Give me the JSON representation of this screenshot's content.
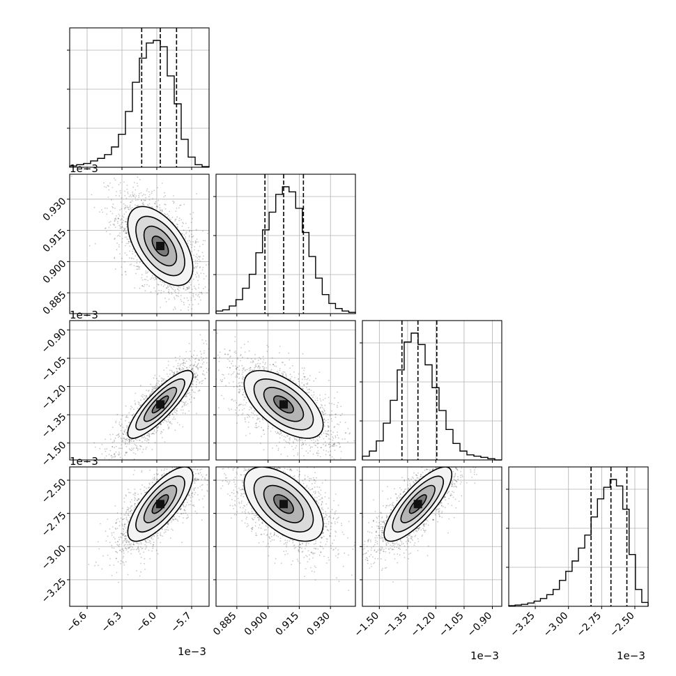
{
  "chart_data": {
    "type": "corner",
    "parameters": [
      {
        "range": [
          -0.00675,
          -0.00555
        ],
        "ticks": [
          "−6.6",
          "−6.3",
          "−6.0",
          "−5.7"
        ],
        "tick_values": [
          -0.0066,
          -0.0063,
          -0.006,
          -0.0057
        ],
        "offset_label": "1e−3",
        "quantiles": [
          -0.00613,
          -0.00597,
          -0.00583
        ]
      },
      {
        "range": [
          0.000875,
          0.000942
        ],
        "ticks": [
          "0.885",
          "0.900",
          "0.915",
          "0.930"
        ],
        "tick_values": [
          0.000885,
          0.0009,
          0.000915,
          0.00093
        ],
        "offset_label": "1e−3",
        "quantiles": [
          0.0008985,
          0.0009075,
          0.000917
        ]
      },
      {
        "range": [
          -0.00159,
          -0.00085
        ],
        "ticks": [
          "−1.50",
          "−1.35",
          "−1.20",
          "−1.05",
          "−0.90"
        ],
        "tick_values": [
          -0.0015,
          -0.00135,
          -0.0012,
          -0.00105,
          -0.0009
        ],
        "offset_label": "1e−3",
        "quantiles": [
          -0.00138,
          -0.001295,
          -0.001195
        ]
      },
      {
        "range": [
          -0.00345,
          -0.0024
        ],
        "ticks": [
          "−3.25",
          "−3.00",
          "−2.75",
          "−2.50"
        ],
        "tick_values": [
          -0.00325,
          -0.003,
          -0.00275,
          -0.0025
        ],
        "offset_label": "1e−3",
        "quantiles": [
          -0.00283,
          -0.00268,
          -0.00256
        ]
      }
    ],
    "histograms": [
      [
        0.01,
        0.02,
        0.03,
        0.05,
        0.07,
        0.1,
        0.16,
        0.26,
        0.44,
        0.67,
        0.86,
        0.98,
        1.0,
        0.95,
        0.72,
        0.5,
        0.22,
        0.08,
        0.02,
        0.005
      ],
      [
        0.02,
        0.03,
        0.06,
        0.11,
        0.2,
        0.31,
        0.48,
        0.66,
        0.8,
        0.94,
        1.0,
        0.96,
        0.83,
        0.64,
        0.45,
        0.28,
        0.15,
        0.08,
        0.04,
        0.02,
        0.01
      ],
      [
        0.03,
        0.07,
        0.15,
        0.29,
        0.47,
        0.71,
        0.93,
        1.0,
        0.91,
        0.75,
        0.57,
        0.39,
        0.24,
        0.13,
        0.07,
        0.04,
        0.03,
        0.02,
        0.01,
        0.0
      ],
      [
        0.005,
        0.01,
        0.015,
        0.025,
        0.04,
        0.06,
        0.09,
        0.13,
        0.2,
        0.27,
        0.35,
        0.45,
        0.55,
        0.69,
        0.83,
        0.92,
        0.98,
        0.93,
        0.75,
        0.4,
        0.13,
        0.03
      ]
    ],
    "pairs": [
      {
        "x": 0,
        "y": 1,
        "mean": [
          -0.00597,
          0.0009075
        ],
        "sd": [
          0.00014,
          9.5e-06
        ],
        "rho": -0.55
      },
      {
        "x": 0,
        "y": 2,
        "mean": [
          -0.00597,
          -0.001295
        ],
        "sd": [
          0.00014,
          9e-05
        ],
        "rho": 0.85
      },
      {
        "x": 1,
        "y": 2,
        "mean": [
          0.0009075,
          -0.001295
        ],
        "sd": [
          9.5e-06,
          9e-05
        ],
        "rho": -0.6
      },
      {
        "x": 0,
        "y": 3,
        "mean": [
          -0.00597,
          -0.00268
        ],
        "sd": [
          0.00014,
          0.00014
        ],
        "rho": 0.75
      },
      {
        "x": 1,
        "y": 3,
        "mean": [
          0.0009075,
          -0.00268
        ],
        "sd": [
          9.5e-06,
          0.00014
        ],
        "rho": -0.55
      },
      {
        "x": 2,
        "y": 3,
        "mean": [
          -0.001295,
          -0.00268
        ],
        "sd": [
          9e-05,
          0.00014
        ],
        "rho": 0.8
      }
    ],
    "contour_levels_sigma": [
      0.5,
      1.0,
      1.5,
      2.0
    ],
    "grid": true,
    "colors": {
      "line": "#000000",
      "grid": "#b0b0b0",
      "points": "#000000",
      "background": "#ffffff"
    }
  }
}
